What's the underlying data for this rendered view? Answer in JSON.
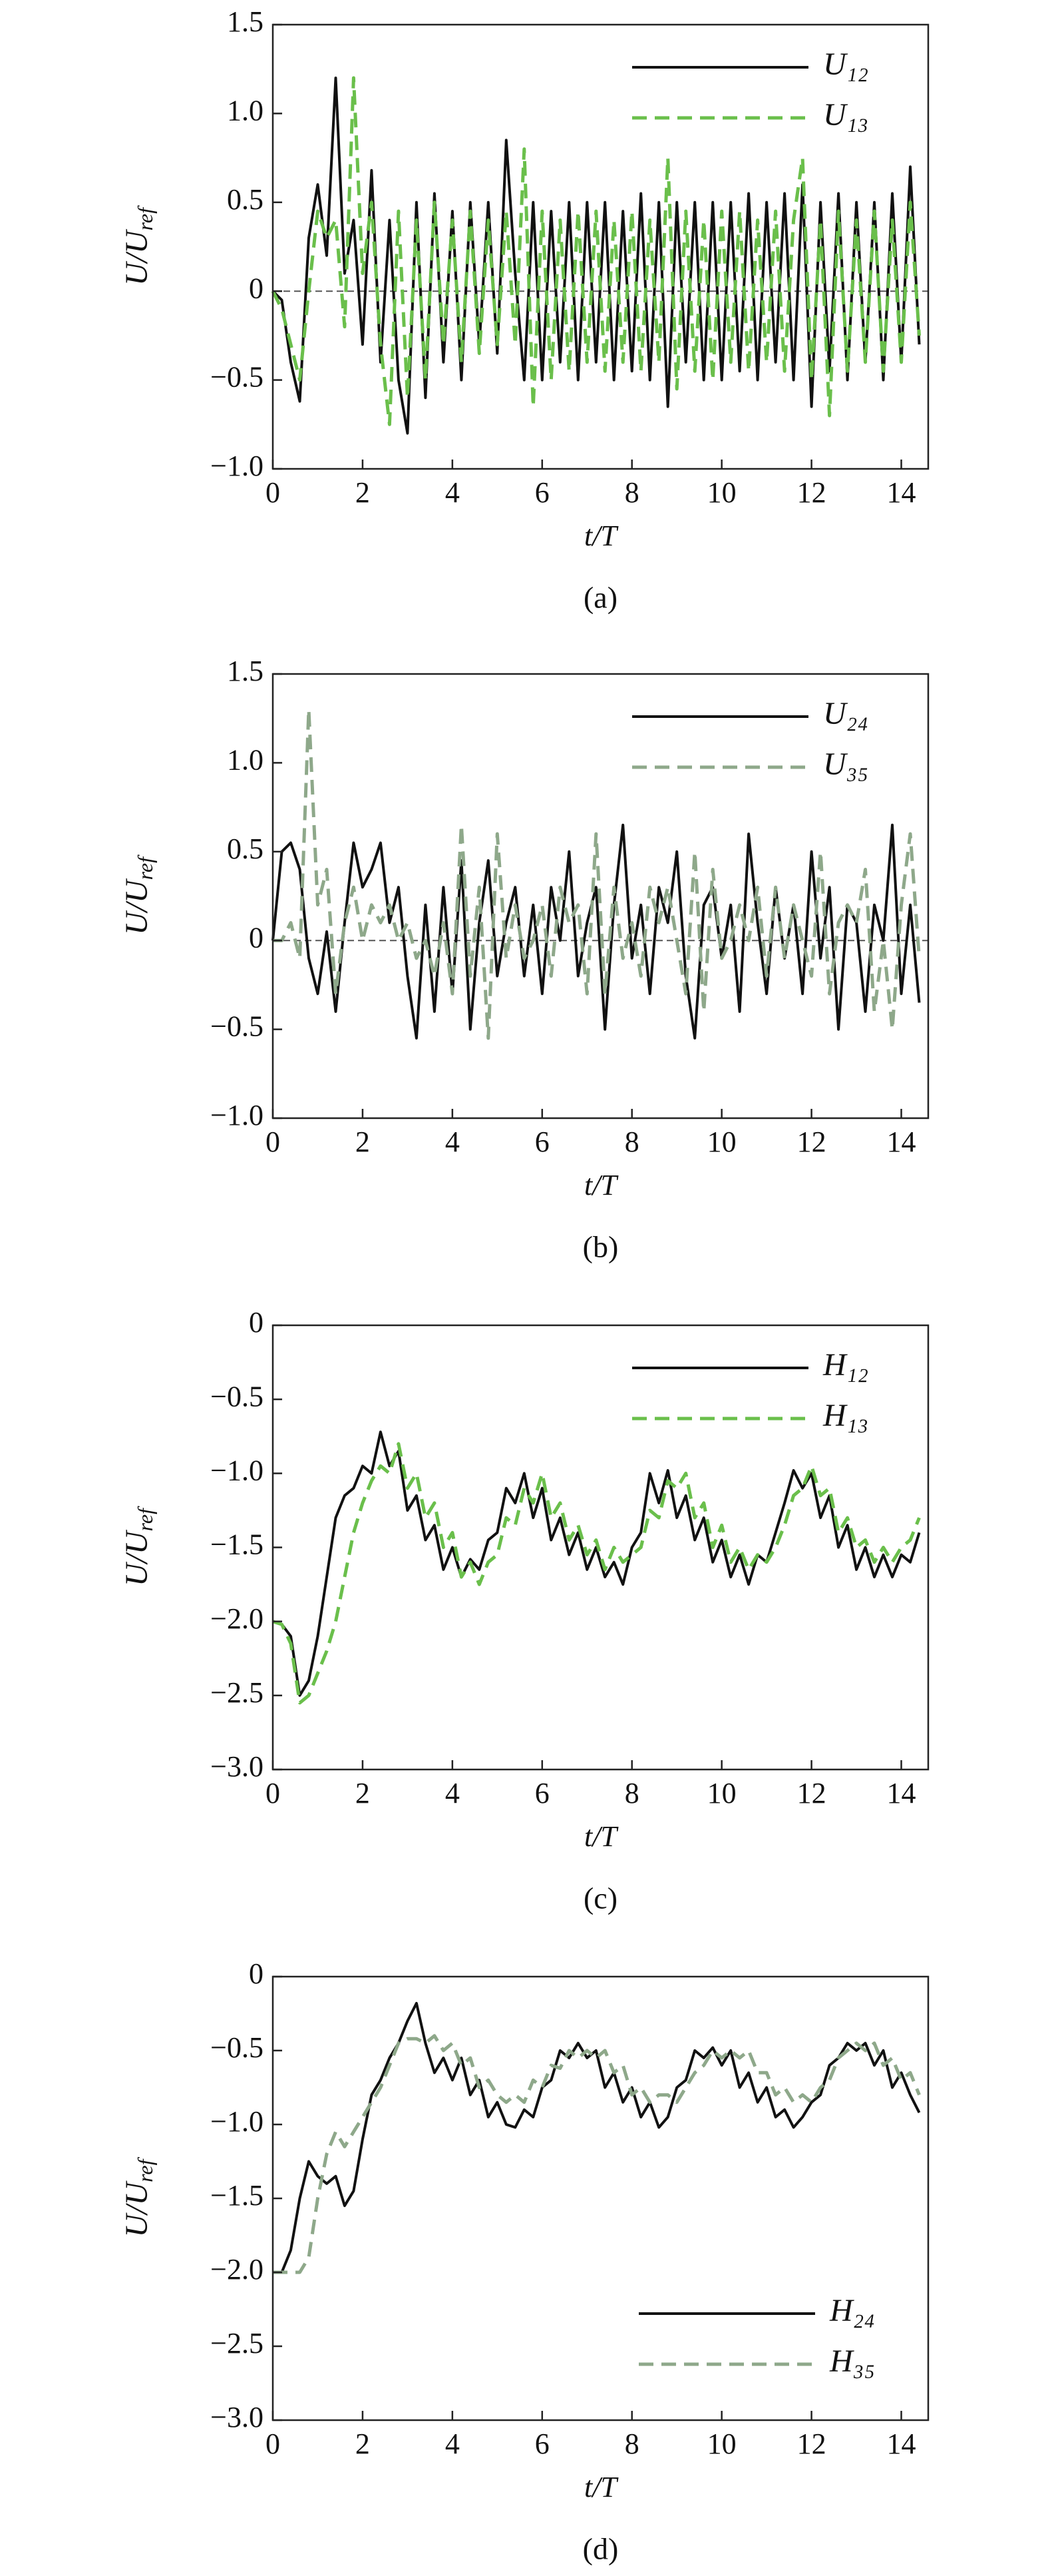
{
  "chart_data": [
    {
      "type": "line",
      "xlabel": "t/T",
      "ylabel": "U/U",
      "ylabel_subscript": "ref",
      "caption": "(a)",
      "xlim": [
        0,
        14.6
      ],
      "ylim": [
        -1,
        1.5
      ],
      "xticks": [
        0,
        2,
        4,
        6,
        8,
        10,
        12,
        14
      ],
      "yticks": [
        {
          "value": -1,
          "label": "−1.0"
        },
        {
          "value": -0.5,
          "label": "−0.5"
        },
        0,
        0.5,
        {
          "value": 1,
          "label": "1.0"
        },
        1.5
      ],
      "zero_line": true,
      "legend": "upper right",
      "x": [
        0,
        0.2,
        0.4,
        0.6,
        0.8,
        1,
        1.2,
        1.4,
        1.6,
        1.8,
        2,
        2.2,
        2.4,
        2.6,
        2.8,
        3,
        3.2,
        3.4,
        3.6,
        3.8,
        4,
        4.2,
        4.4,
        4.6,
        4.8,
        5,
        5.2,
        5.4,
        5.6,
        5.8,
        6,
        6.2,
        6.4,
        6.6,
        6.8,
        7,
        7.2,
        7.4,
        7.6,
        7.8,
        8,
        8.2,
        8.4,
        8.6,
        8.8,
        9,
        9.2,
        9.4,
        9.6,
        9.8,
        10,
        10.2,
        10.4,
        10.6,
        10.8,
        11,
        11.2,
        11.4,
        11.6,
        11.8,
        12,
        12.2,
        12.4,
        12.6,
        12.8,
        13,
        13.2,
        13.4,
        13.6,
        13.8,
        14,
        14.2,
        14.4
      ],
      "series": [
        {
          "name": "U₁₂",
          "color": "#111111",
          "dashed": false,
          "values": [
            0,
            -0.05,
            -0.4,
            -0.62,
            0.3,
            0.6,
            0.2,
            1.2,
            0.1,
            0.4,
            -0.3,
            0.68,
            -0.4,
            0.4,
            -0.5,
            -0.8,
            0.5,
            -0.6,
            0.55,
            -0.4,
            0.45,
            -0.5,
            0.5,
            -0.3,
            0.5,
            -0.35,
            0.85,
            0.1,
            -0.5,
            0.5,
            -0.5,
            0.45,
            -0.4,
            0.5,
            -0.5,
            0.5,
            -0.4,
            0.5,
            -0.5,
            0.45,
            -0.45,
            0.55,
            -0.5,
            0.5,
            -0.65,
            0.5,
            -0.4,
            0.5,
            -0.5,
            0.5,
            -0.5,
            0.5,
            -0.45,
            0.55,
            -0.5,
            0.5,
            -0.4,
            0.55,
            -0.5,
            0.6,
            -0.65,
            0.5,
            -0.45,
            0.55,
            -0.5,
            0.5,
            -0.4,
            0.5,
            -0.5,
            0.55,
            -0.4,
            0.7,
            -0.3
          ]
        },
        {
          "name": "U₁₃",
          "color": "#6abf4b",
          "dashed": true,
          "values": [
            0,
            -0.1,
            -0.3,
            -0.5,
            0,
            0.45,
            0.3,
            0.4,
            -0.2,
            1.2,
            0.1,
            0.5,
            -0.3,
            -0.75,
            0.45,
            -0.6,
            0.4,
            -0.5,
            0.5,
            -0.3,
            0.4,
            -0.4,
            0.45,
            -0.35,
            0.4,
            -0.3,
            0.45,
            -0.3,
            0.8,
            -0.65,
            0.45,
            -0.5,
            0.4,
            -0.45,
            0.45,
            -0.4,
            0.45,
            -0.45,
            0.4,
            -0.4,
            0.45,
            -0.45,
            0.4,
            -0.4,
            0.75,
            -0.55,
            0.45,
            -0.45,
            0.4,
            -0.5,
            0.45,
            -0.4,
            0.45,
            -0.45,
            0.4,
            -0.4,
            0.45,
            -0.45,
            0.4,
            0.75,
            -0.5,
            0.4,
            -0.7,
            0.45,
            -0.45,
            0.4,
            -0.4,
            0.45,
            -0.45,
            0.4,
            -0.4,
            0.5,
            -0.25
          ]
        }
      ]
    },
    {
      "type": "line",
      "xlabel": "t/T",
      "ylabel": "U/U",
      "ylabel_subscript": "ref",
      "caption": "(b)",
      "xlim": [
        0,
        14.6
      ],
      "ylim": [
        -1,
        1.5
      ],
      "xticks": [
        0,
        2,
        4,
        6,
        8,
        10,
        12,
        14
      ],
      "yticks": [
        {
          "value": -1,
          "label": "−1.0"
        },
        {
          "value": -0.5,
          "label": "−0.5"
        },
        0,
        0.5,
        {
          "value": 1,
          "label": "1.0"
        },
        1.5
      ],
      "zero_line": true,
      "legend": "upper right",
      "x": [
        0,
        0.2,
        0.4,
        0.6,
        0.8,
        1,
        1.2,
        1.4,
        1.6,
        1.8,
        2,
        2.2,
        2.4,
        2.6,
        2.8,
        3,
        3.2,
        3.4,
        3.6,
        3.8,
        4,
        4.2,
        4.4,
        4.6,
        4.8,
        5,
        5.2,
        5.4,
        5.6,
        5.8,
        6,
        6.2,
        6.4,
        6.6,
        6.8,
        7,
        7.2,
        7.4,
        7.6,
        7.8,
        8,
        8.2,
        8.4,
        8.6,
        8.8,
        9,
        9.2,
        9.4,
        9.6,
        9.8,
        10,
        10.2,
        10.4,
        10.6,
        10.8,
        11,
        11.2,
        11.4,
        11.6,
        11.8,
        12,
        12.2,
        12.4,
        12.6,
        12.8,
        13,
        13.2,
        13.4,
        13.6,
        13.8,
        14,
        14.2,
        14.4
      ],
      "series": [
        {
          "name": "U₂₄",
          "color": "#111111",
          "dashed": false,
          "values": [
            0,
            0.5,
            0.55,
            0.4,
            -0.1,
            -0.3,
            0.05,
            -0.4,
            0.1,
            0.55,
            0.3,
            0.4,
            0.55,
            0.1,
            0.3,
            -0.2,
            -0.55,
            0.2,
            -0.4,
            0.3,
            -0.3,
            0.45,
            -0.5,
            0.1,
            0.45,
            -0.2,
            0.1,
            0.3,
            -0.2,
            0.2,
            -0.3,
            0.3,
            0,
            0.5,
            -0.2,
            0.1,
            0.3,
            -0.5,
            0.2,
            0.65,
            -0.1,
            0.2,
            -0.3,
            0.3,
            0.1,
            0.5,
            -0.2,
            -0.55,
            0.2,
            0.3,
            -0.1,
            0.2,
            -0.4,
            0.6,
            0.1,
            -0.3,
            0.3,
            -0.1,
            0.2,
            -0.3,
            0.5,
            -0.1,
            0.3,
            -0.5,
            0.2,
            0.1,
            -0.4,
            0.2,
            0,
            0.65,
            -0.3,
            0.2,
            -0.35
          ]
        },
        {
          "name": "U₃₅",
          "color": "#8ea88a",
          "dashed": true,
          "values": [
            0,
            0,
            0.1,
            -0.1,
            1.3,
            0.2,
            0.4,
            -0.3,
            0.1,
            0.3,
            0,
            0.2,
            0.1,
            0.2,
            0,
            0.1,
            -0.1,
            0,
            -0.2,
            0.1,
            -0.3,
            0.65,
            -0.2,
            0.3,
            -0.55,
            0.6,
            -0.1,
            0.2,
            -0.1,
            0,
            0.2,
            -0.2,
            0.3,
            0.1,
            0.2,
            -0.3,
            0.6,
            -0.3,
            0.3,
            -0.1,
            0.1,
            -0.2,
            0.3,
            0.1,
            0.3,
            0,
            -0.3,
            0.5,
            -0.4,
            0.4,
            -0.1,
            0,
            0.2,
            0,
            0.3,
            -0.2,
            0.3,
            -0.1,
            0.2,
            0,
            -0.2,
            0.5,
            -0.3,
            0.1,
            0.2,
            0.1,
            0.4,
            -0.4,
            0,
            -0.5,
            0.2,
            0.6,
            -0.1
          ]
        }
      ]
    },
    {
      "type": "line",
      "xlabel": "t/T",
      "ylabel": "U/U",
      "ylabel_subscript": "ref",
      "caption": "(c)",
      "xlim": [
        0,
        14.6
      ],
      "ylim": [
        -3,
        0
      ],
      "xticks": [
        0,
        2,
        4,
        6,
        8,
        10,
        12,
        14
      ],
      "yticks": [
        {
          "value": -3,
          "label": "−3.0"
        },
        {
          "value": -2.5,
          "label": "−2.5"
        },
        {
          "value": -2,
          "label": "−2.0"
        },
        {
          "value": -1.5,
          "label": "−1.5"
        },
        {
          "value": -1,
          "label": "−1.0"
        },
        {
          "value": -0.5,
          "label": "−0.5"
        },
        0
      ],
      "zero_line": false,
      "legend": "upper right",
      "x": [
        0,
        0.2,
        0.4,
        0.6,
        0.8,
        1,
        1.2,
        1.4,
        1.6,
        1.8,
        2,
        2.2,
        2.4,
        2.6,
        2.8,
        3,
        3.2,
        3.4,
        3.6,
        3.8,
        4,
        4.2,
        4.4,
        4.6,
        4.8,
        5,
        5.2,
        5.4,
        5.6,
        5.8,
        6,
        6.2,
        6.4,
        6.6,
        6.8,
        7,
        7.2,
        7.4,
        7.6,
        7.8,
        8,
        8.2,
        8.4,
        8.6,
        8.8,
        9,
        9.2,
        9.4,
        9.6,
        9.8,
        10,
        10.2,
        10.4,
        10.6,
        10.8,
        11,
        11.2,
        11.4,
        11.6,
        11.8,
        12,
        12.2,
        12.4,
        12.6,
        12.8,
        13,
        13.2,
        13.4,
        13.6,
        13.8,
        14,
        14.2,
        14.4
      ],
      "series": [
        {
          "name": "H₁₂",
          "color": "#111111",
          "dashed": false,
          "values": [
            -2,
            -2.02,
            -2.1,
            -2.5,
            -2.4,
            -2.1,
            -1.7,
            -1.3,
            -1.15,
            -1.1,
            -0.95,
            -1,
            -0.72,
            -0.95,
            -0.85,
            -1.25,
            -1.15,
            -1.45,
            -1.35,
            -1.65,
            -1.5,
            -1.7,
            -1.58,
            -1.65,
            -1.45,
            -1.4,
            -1.1,
            -1.2,
            -1,
            -1.3,
            -1.1,
            -1.45,
            -1.3,
            -1.55,
            -1.4,
            -1.65,
            -1.5,
            -1.7,
            -1.6,
            -1.75,
            -1.5,
            -1.4,
            -1,
            -1.2,
            -0.98,
            -1.3,
            -1.15,
            -1.45,
            -1.3,
            -1.6,
            -1.45,
            -1.7,
            -1.55,
            -1.75,
            -1.55,
            -1.6,
            -1.4,
            -1.2,
            -0.98,
            -1.1,
            -1,
            -1.3,
            -1.15,
            -1.5,
            -1.35,
            -1.65,
            -1.5,
            -1.7,
            -1.55,
            -1.7,
            -1.55,
            -1.6,
            -1.4
          ]
        },
        {
          "name": "H₁₃",
          "color": "#6abf4b",
          "dashed": true,
          "values": [
            -2,
            -2.02,
            -2.15,
            -2.55,
            -2.5,
            -2.35,
            -2.2,
            -2,
            -1.7,
            -1.4,
            -1.2,
            -1.05,
            -0.95,
            -1,
            -0.8,
            -1.1,
            -1,
            -1.3,
            -1.2,
            -1.5,
            -1.4,
            -1.7,
            -1.6,
            -1.75,
            -1.6,
            -1.55,
            -1.3,
            -1.35,
            -1.1,
            -1.2,
            -1,
            -1.3,
            -1.2,
            -1.45,
            -1.35,
            -1.55,
            -1.45,
            -1.65,
            -1.5,
            -1.6,
            -1.55,
            -1.5,
            -1.25,
            -1.3,
            -1.05,
            -1.1,
            -1,
            -1.3,
            -1.2,
            -1.5,
            -1.35,
            -1.6,
            -1.5,
            -1.65,
            -1.55,
            -1.6,
            -1.5,
            -1.35,
            -1.15,
            -1.1,
            -0.95,
            -1.15,
            -1.1,
            -1.4,
            -1.3,
            -1.5,
            -1.45,
            -1.6,
            -1.5,
            -1.6,
            -1.5,
            -1.45,
            -1.3
          ]
        }
      ]
    },
    {
      "type": "line",
      "xlabel": "t/T",
      "ylabel": "U/U",
      "ylabel_subscript": "ref",
      "caption": "(d)",
      "xlim": [
        0,
        14.6
      ],
      "ylim": [
        -3,
        0
      ],
      "xticks": [
        0,
        2,
        4,
        6,
        8,
        10,
        12,
        14
      ],
      "yticks": [
        {
          "value": -3,
          "label": "−3.0"
        },
        {
          "value": -2.5,
          "label": "−2.5"
        },
        {
          "value": -2,
          "label": "−2.0"
        },
        {
          "value": -1.5,
          "label": "−1.5"
        },
        {
          "value": -1,
          "label": "−1.0"
        },
        {
          "value": -0.5,
          "label": "−0.5"
        },
        0
      ],
      "zero_line": false,
      "legend": "lower right",
      "x": [
        0,
        0.2,
        0.4,
        0.6,
        0.8,
        1,
        1.2,
        1.4,
        1.6,
        1.8,
        2,
        2.2,
        2.4,
        2.6,
        2.8,
        3,
        3.2,
        3.4,
        3.6,
        3.8,
        4,
        4.2,
        4.4,
        4.6,
        4.8,
        5,
        5.2,
        5.4,
        5.6,
        5.8,
        6,
        6.2,
        6.4,
        6.6,
        6.8,
        7,
        7.2,
        7.4,
        7.6,
        7.8,
        8,
        8.2,
        8.4,
        8.6,
        8.8,
        9,
        9.2,
        9.4,
        9.6,
        9.8,
        10,
        10.2,
        10.4,
        10.6,
        10.8,
        11,
        11.2,
        11.4,
        11.6,
        11.8,
        12,
        12.2,
        12.4,
        12.6,
        12.8,
        13,
        13.2,
        13.4,
        13.6,
        13.8,
        14,
        14.2,
        14.4
      ],
      "series": [
        {
          "name": "H₂₄",
          "color": "#111111",
          "dashed": false,
          "values": [
            -2,
            -2,
            -1.85,
            -1.5,
            -1.25,
            -1.35,
            -1.4,
            -1.35,
            -1.55,
            -1.45,
            -1.1,
            -0.8,
            -0.7,
            -0.55,
            -0.45,
            -0.3,
            -0.18,
            -0.45,
            -0.65,
            -0.55,
            -0.7,
            -0.55,
            -0.8,
            -0.7,
            -0.95,
            -0.85,
            -1,
            -1.02,
            -0.9,
            -0.95,
            -0.75,
            -0.7,
            -0.5,
            -0.55,
            -0.45,
            -0.55,
            -0.5,
            -0.75,
            -0.65,
            -0.85,
            -0.75,
            -0.95,
            -0.85,
            -1.02,
            -0.95,
            -0.75,
            -0.7,
            -0.5,
            -0.55,
            -0.48,
            -0.6,
            -0.5,
            -0.75,
            -0.65,
            -0.85,
            -0.75,
            -0.95,
            -0.9,
            -1.02,
            -0.95,
            -0.85,
            -0.8,
            -0.6,
            -0.55,
            -0.45,
            -0.5,
            -0.45,
            -0.6,
            -0.5,
            -0.75,
            -0.65,
            -0.8,
            -0.92
          ]
        },
        {
          "name": "H₃₅",
          "color": "#8ea88a",
          "dashed": true,
          "values": [
            -2,
            -2,
            -2,
            -2,
            -1.9,
            -1.5,
            -1.2,
            -1.05,
            -1.15,
            -1.05,
            -0.95,
            -0.85,
            -0.75,
            -0.6,
            -0.45,
            -0.42,
            -0.42,
            -0.45,
            -0.4,
            -0.5,
            -0.45,
            -0.6,
            -0.55,
            -0.75,
            -0.7,
            -0.8,
            -0.85,
            -0.8,
            -0.85,
            -0.7,
            -0.75,
            -0.6,
            -0.62,
            -0.5,
            -0.55,
            -0.5,
            -0.55,
            -0.5,
            -0.65,
            -0.6,
            -0.8,
            -0.75,
            -0.85,
            -0.8,
            -0.8,
            -0.85,
            -0.75,
            -0.65,
            -0.6,
            -0.5,
            -0.55,
            -0.5,
            -0.55,
            -0.5,
            -0.65,
            -0.65,
            -0.8,
            -0.75,
            -0.85,
            -0.8,
            -0.85,
            -0.75,
            -0.7,
            -0.55,
            -0.5,
            -0.45,
            -0.5,
            -0.45,
            -0.6,
            -0.55,
            -0.7,
            -0.65,
            -0.8
          ]
        }
      ]
    }
  ]
}
